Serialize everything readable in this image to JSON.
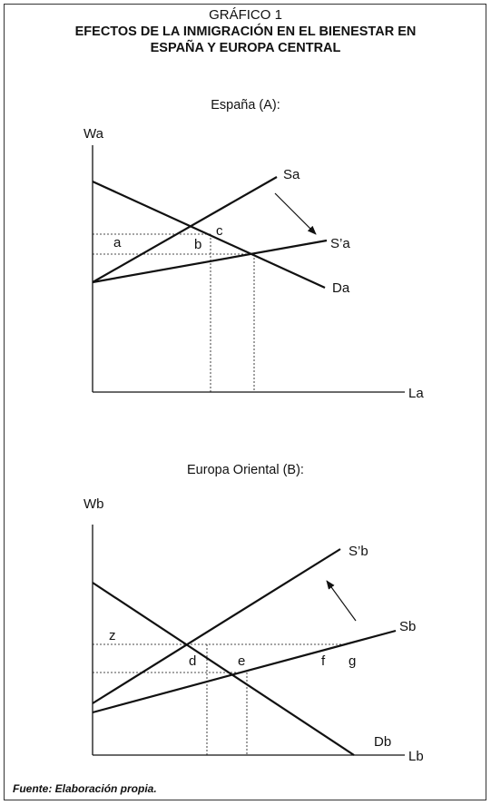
{
  "header": {
    "kicker": "GRÁFICO 1",
    "title_line1": "EFECTOS DE LA INMIGRACIÓN EN EL BIENESTAR EN",
    "title_line2": "ESPAÑA Y EUROPA CENTRAL"
  },
  "panel_a": {
    "subtitle": "España (A):",
    "y_axis_label": "Wa",
    "x_axis_label": "La",
    "curves": {
      "supply": "Sa",
      "supply_shifted": "S’a",
      "demand": "Da"
    },
    "areas": {
      "a": "a",
      "b": "b",
      "c": "c"
    }
  },
  "panel_b": {
    "subtitle": "Europa Oriental (B):",
    "y_axis_label": "Wb",
    "x_axis_label": "Lb",
    "curves": {
      "supply": "Sb",
      "supply_shifted": "S’b",
      "demand": "Db"
    },
    "areas": {
      "z": "z",
      "d": "d",
      "e": "e",
      "f": "f",
      "g": "g"
    }
  },
  "footer": {
    "source": "Fuente: Elaboración propia."
  }
}
